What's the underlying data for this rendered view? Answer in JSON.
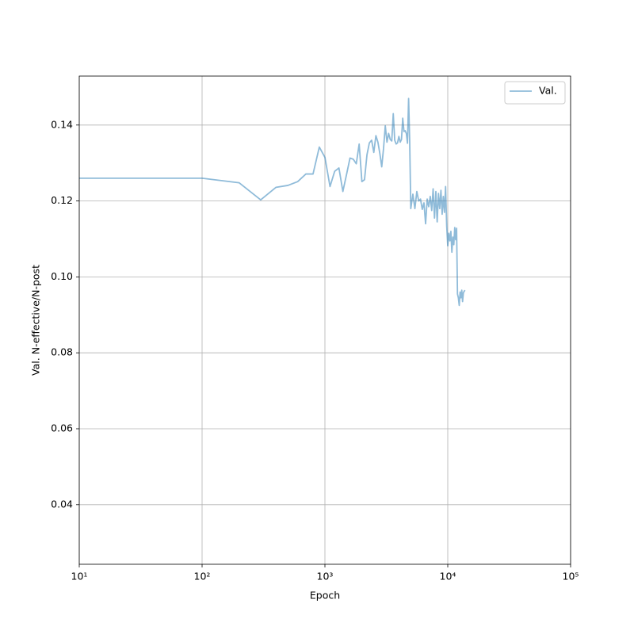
{
  "chart_data": {
    "type": "line",
    "xlabel": "Epoch",
    "ylabel": "Val. N-effective/N-post",
    "xscale": "log",
    "grid": true,
    "legend": "upper right",
    "alpha": 0.5,
    "xlim": [
      10,
      100000
    ],
    "xticks": [
      {
        "value": 10,
        "label": "10¹"
      },
      {
        "value": 100,
        "label": "10²"
      },
      {
        "value": 1000,
        "label": "10³"
      },
      {
        "value": 10000,
        "label": "10⁴"
      },
      {
        "value": 100000,
        "label": "10⁵"
      }
    ],
    "ylim": [
      0.0243,
      0.1529
    ],
    "yticks": [
      0.04,
      0.06,
      0.08,
      {
        "value": 0.1,
        "label": "0.10"
      },
      0.12,
      0.14
    ],
    "x": [
      10,
      100,
      200,
      300,
      400,
      500,
      600,
      700,
      800,
      900,
      1000,
      1100,
      1200,
      1300,
      1400,
      1500,
      1600,
      1700,
      1800,
      1900,
      2000,
      2100,
      2200,
      2300,
      2400,
      2500,
      2600,
      2700,
      2800,
      2900,
      3000,
      3100,
      3200,
      3300,
      3400,
      3500,
      3600,
      3700,
      3800,
      3900,
      4000,
      4100,
      4200,
      4300,
      4400,
      4500,
      4600,
      4700,
      4800,
      4900,
      5000,
      5200,
      5400,
      5600,
      5800,
      6000,
      6200,
      6400,
      6600,
      6800,
      7000,
      7200,
      7400,
      7600,
      7800,
      8000,
      8200,
      8400,
      8600,
      8800,
      9000,
      9200,
      9400,
      9600,
      9800,
      10000,
      10200,
      10400,
      10600,
      10800,
      11000,
      11200,
      11400,
      11600,
      11800,
      12000,
      12200,
      12400,
      12600,
      12800,
      13000,
      13200,
      13400,
      13600,
      13800
    ],
    "series": [
      {
        "name": "Val.",
        "color": "#1f77b4",
        "values": [
          0.126,
          0.126,
          0.1248,
          0.1203,
          0.1236,
          0.1241,
          0.1251,
          0.1271,
          0.1271,
          0.1342,
          0.1315,
          0.1238,
          0.1278,
          0.1287,
          0.1225,
          0.127,
          0.1313,
          0.131,
          0.1298,
          0.135,
          0.1251,
          0.1256,
          0.1322,
          0.1353,
          0.136,
          0.1328,
          0.1372,
          0.1355,
          0.1325,
          0.129,
          0.1338,
          0.1398,
          0.1355,
          0.1378,
          0.1362,
          0.1358,
          0.143,
          0.136,
          0.135,
          0.1353,
          0.137,
          0.1355,
          0.1362,
          0.1418,
          0.1383,
          0.1385,
          0.1378,
          0.1352,
          0.147,
          0.1355,
          0.118,
          0.1218,
          0.118,
          0.1225,
          0.12,
          0.1205,
          0.1178,
          0.1195,
          0.114,
          0.1205,
          0.1185,
          0.1212,
          0.1175,
          0.1232,
          0.1155,
          0.1225,
          0.1145,
          0.122,
          0.118,
          0.1228,
          0.1165,
          0.1212,
          0.117,
          0.1238,
          0.1135,
          0.1082,
          0.1115,
          0.1095,
          0.112,
          0.1065,
          0.1105,
          0.1085,
          0.113,
          0.1098,
          0.1128,
          0.0955,
          0.0945,
          0.0925,
          0.096,
          0.0945,
          0.0965,
          0.0935,
          0.0958,
          0.0962,
          0.0965
        ]
      }
    ]
  }
}
